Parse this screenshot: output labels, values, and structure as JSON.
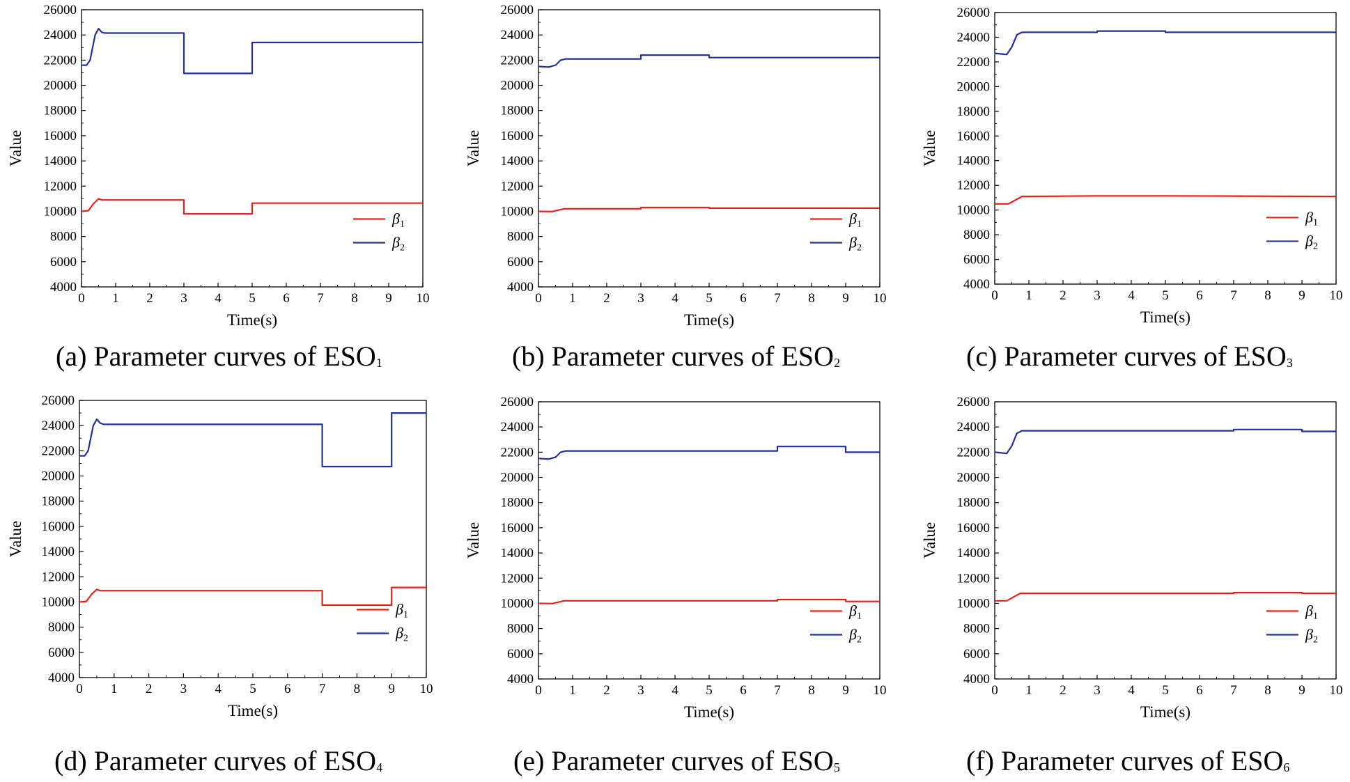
{
  "chart_data": [
    {
      "type": "line",
      "panel_label": "(a)",
      "caption": "Parameter curves of ESO",
      "caption_subscript": "1",
      "xlabel": "Time(s)",
      "ylabel": "Value",
      "xlim": [
        0,
        10
      ],
      "ylim": [
        4000,
        26000
      ],
      "xticks": [
        0,
        1,
        2,
        3,
        4,
        5,
        6,
        7,
        8,
        9,
        10
      ],
      "yticks": [
        4000,
        6000,
        8000,
        10000,
        12000,
        14000,
        16000,
        18000,
        20000,
        22000,
        24000,
        26000
      ],
      "legend": {
        "position": "lower-right"
      },
      "series": [
        {
          "name": "β",
          "name_subscript": "1",
          "color": "#e8201a",
          "x": [
            0,
            0.2,
            0.35,
            0.5,
            0.6,
            0.7,
            3,
            3,
            5,
            5,
            10
          ],
          "y": [
            10000,
            10050,
            10600,
            11000,
            10900,
            10900,
            10900,
            9800,
            9800,
            10650,
            10650
          ]
        },
        {
          "name": "β",
          "name_subscript": "2",
          "color": "#23309a",
          "x": [
            0,
            0.15,
            0.25,
            0.4,
            0.5,
            0.6,
            0.7,
            3,
            3,
            5,
            5,
            10
          ],
          "y": [
            21600,
            21600,
            22000,
            24000,
            24500,
            24200,
            24150,
            24150,
            20950,
            20950,
            23400,
            23400
          ]
        }
      ]
    },
    {
      "type": "line",
      "panel_label": "(b)",
      "caption": "Parameter curves of ESO",
      "caption_subscript": "2",
      "xlabel": "Time(s)",
      "ylabel": "Value",
      "xlim": [
        0,
        10
      ],
      "ylim": [
        4000,
        26000
      ],
      "xticks": [
        0,
        1,
        2,
        3,
        4,
        5,
        6,
        7,
        8,
        9,
        10
      ],
      "yticks": [
        4000,
        6000,
        8000,
        10000,
        12000,
        14000,
        16000,
        18000,
        20000,
        22000,
        24000,
        26000
      ],
      "legend": {
        "position": "lower-right"
      },
      "series": [
        {
          "name": "β",
          "name_subscript": "1",
          "color": "#e8201a",
          "x": [
            0,
            0.4,
            0.6,
            0.75,
            3,
            3,
            5,
            5,
            10
          ],
          "y": [
            10000,
            9980,
            10100,
            10200,
            10200,
            10300,
            10300,
            10250,
            10250
          ]
        },
        {
          "name": "β",
          "name_subscript": "2",
          "color": "#23309a",
          "x": [
            0,
            0.3,
            0.5,
            0.65,
            0.8,
            3,
            3,
            5,
            5,
            10
          ],
          "y": [
            21500,
            21450,
            21600,
            22000,
            22100,
            22100,
            22400,
            22400,
            22200,
            22200
          ]
        }
      ]
    },
    {
      "type": "line",
      "panel_label": "(c)",
      "caption": "Parameter curves of ESO",
      "caption_subscript": "3",
      "xlabel": "Time(s)",
      "ylabel": "Value",
      "xlim": [
        0,
        10
      ],
      "ylim": [
        4000,
        26000
      ],
      "xticks": [
        0,
        1,
        2,
        3,
        4,
        5,
        6,
        7,
        8,
        9,
        10
      ],
      "yticks": [
        4000,
        6000,
        8000,
        10000,
        12000,
        14000,
        16000,
        18000,
        20000,
        22000,
        24000,
        26000
      ],
      "legend": {
        "position": "lower-right"
      },
      "series": [
        {
          "name": "β",
          "name_subscript": "1",
          "color": "#e8201a",
          "x": [
            0,
            0.4,
            0.6,
            0.8,
            3,
            5,
            10
          ],
          "y": [
            10500,
            10500,
            10800,
            11100,
            11150,
            11150,
            11100
          ]
        },
        {
          "name": "β",
          "name_subscript": "2",
          "color": "#23309a",
          "x": [
            0,
            0.35,
            0.5,
            0.65,
            0.8,
            3,
            3,
            5,
            5,
            10
          ],
          "y": [
            22700,
            22600,
            23200,
            24200,
            24400,
            24400,
            24500,
            24500,
            24400,
            24400
          ]
        }
      ]
    },
    {
      "type": "line",
      "panel_label": "(d)",
      "caption": "Parameter curves of ESO",
      "caption_subscript": "4",
      "xlabel": "Time(s)",
      "ylabel": "Value",
      "xlim": [
        0,
        10
      ],
      "ylim": [
        4000,
        26000
      ],
      "xticks": [
        0,
        1,
        2,
        3,
        4,
        5,
        6,
        7,
        8,
        9,
        10
      ],
      "yticks": [
        4000,
        6000,
        8000,
        10000,
        12000,
        14000,
        16000,
        18000,
        20000,
        22000,
        24000,
        26000
      ],
      "legend": {
        "position": "lower-right"
      },
      "series": [
        {
          "name": "β",
          "name_subscript": "1",
          "color": "#e8201a",
          "x": [
            0,
            0.2,
            0.35,
            0.5,
            0.6,
            0.7,
            7,
            7,
            9,
            9,
            10
          ],
          "y": [
            10000,
            10050,
            10600,
            11000,
            10900,
            10900,
            10900,
            9750,
            9750,
            11150,
            11150
          ]
        },
        {
          "name": "β",
          "name_subscript": "2",
          "color": "#23309a",
          "x": [
            0,
            0.15,
            0.25,
            0.4,
            0.5,
            0.6,
            0.7,
            7,
            7,
            9,
            9,
            10
          ],
          "y": [
            21600,
            21600,
            22000,
            24000,
            24500,
            24200,
            24100,
            24100,
            20750,
            20750,
            25000,
            25000
          ]
        }
      ]
    },
    {
      "type": "line",
      "panel_label": "(e)",
      "caption": "Parameter curves of ESO",
      "caption_subscript": "5",
      "xlabel": "Time(s)",
      "ylabel": "Value",
      "xlim": [
        0,
        10
      ],
      "ylim": [
        4000,
        26000
      ],
      "xticks": [
        0,
        1,
        2,
        3,
        4,
        5,
        6,
        7,
        8,
        9,
        10
      ],
      "yticks": [
        4000,
        6000,
        8000,
        10000,
        12000,
        14000,
        16000,
        18000,
        20000,
        22000,
        24000,
        26000
      ],
      "legend": {
        "position": "lower-right"
      },
      "series": [
        {
          "name": "β",
          "name_subscript": "1",
          "color": "#e8201a",
          "x": [
            0,
            0.4,
            0.6,
            0.75,
            7,
            7,
            9,
            9,
            10
          ],
          "y": [
            10000,
            9980,
            10100,
            10200,
            10200,
            10300,
            10300,
            10150,
            10150
          ]
        },
        {
          "name": "β",
          "name_subscript": "2",
          "color": "#23309a",
          "x": [
            0,
            0.3,
            0.5,
            0.65,
            0.8,
            7,
            7,
            9,
            9,
            10
          ],
          "y": [
            21500,
            21450,
            21600,
            22000,
            22100,
            22100,
            22450,
            22450,
            22000,
            22000
          ]
        }
      ]
    },
    {
      "type": "line",
      "panel_label": "(f)",
      "caption": "Parameter curves of ESO",
      "caption_subscript": "6",
      "xlabel": "Time(s)",
      "ylabel": "Value",
      "xlim": [
        0,
        10
      ],
      "ylim": [
        4000,
        26000
      ],
      "xticks": [
        0,
        1,
        2,
        3,
        4,
        5,
        6,
        7,
        8,
        9,
        10
      ],
      "yticks": [
        4000,
        6000,
        8000,
        10000,
        12000,
        14000,
        16000,
        18000,
        20000,
        22000,
        24000,
        26000
      ],
      "legend": {
        "position": "lower-right"
      },
      "series": [
        {
          "name": "β",
          "name_subscript": "1",
          "color": "#e8201a",
          "x": [
            0,
            0.35,
            0.55,
            0.75,
            7,
            7,
            9,
            9,
            10
          ],
          "y": [
            10200,
            10200,
            10500,
            10800,
            10800,
            10850,
            10850,
            10800,
            10800
          ]
        },
        {
          "name": "β",
          "name_subscript": "2",
          "color": "#23309a",
          "x": [
            0,
            0.35,
            0.5,
            0.65,
            0.8,
            7,
            7,
            9,
            9,
            10
          ],
          "y": [
            22000,
            21900,
            22500,
            23500,
            23700,
            23700,
            23800,
            23800,
            23650,
            23650
          ]
        }
      ]
    }
  ]
}
